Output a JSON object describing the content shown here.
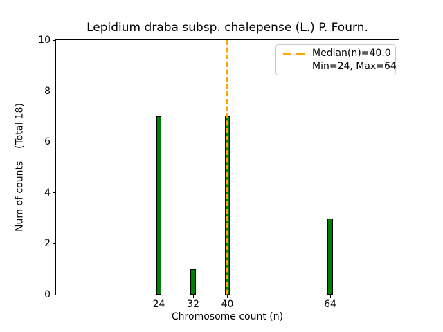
{
  "figure": {
    "background_color": "#ffffff"
  },
  "chart_data": {
    "type": "bar",
    "title": "Lepidium draba subsp. chalepense (L.) P. Fourn.",
    "xlabel": "Chromosome count (n)",
    "ylabel": "Num of counts    (Total 18)",
    "total_counts": 18,
    "categories": [
      24,
      32,
      40,
      64
    ],
    "values": [
      7,
      1,
      7,
      3
    ],
    "xlim": [
      0,
      80
    ],
    "ylim": [
      0,
      10
    ],
    "xticks": [
      24,
      32,
      40,
      64
    ],
    "yticks": [
      0,
      2,
      4,
      6,
      8,
      10
    ],
    "grid": false,
    "bar_color": "#008000",
    "bar_edge_color": "#000000",
    "bar_width_units": 1.2,
    "median_line": {
      "x": 40,
      "value_label": "40.0",
      "color": "#FFA500",
      "style": "dashed"
    },
    "min": 24,
    "max": 64,
    "legend_position": "upper right",
    "legend": [
      {
        "handle": "dashed-line",
        "color": "#FFA500",
        "label": "Median(n)=40.0"
      },
      {
        "handle": "none",
        "color": "",
        "label": "Min=24, Max=64"
      }
    ]
  }
}
